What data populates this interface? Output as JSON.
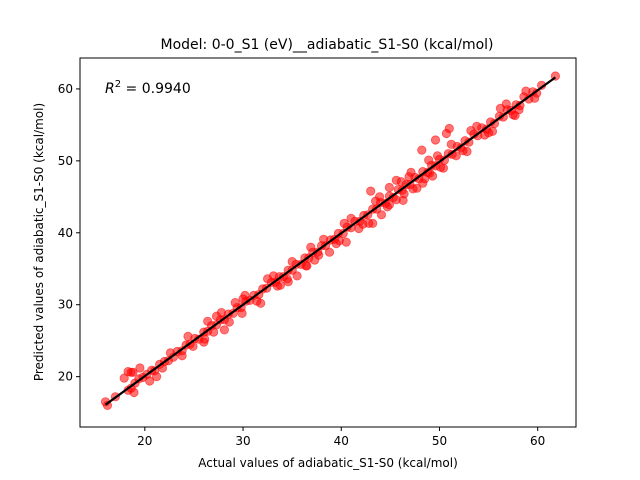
{
  "chart_data": {
    "type": "scatter",
    "title": "Model: 0-0_S1 (eV)__adiabatic_S1-S0 (kcal/mol)",
    "xlabel": "Actual values of adiabatic_S1-S0 (kcal/mol)",
    "ylabel": "Predicted values of adiabatic_S1-S0 (kcal/mol)",
    "annotation": {
      "r2_symbol": "R",
      "r2_exp": "2",
      "r2_text": " = 0.9940"
    },
    "xlim": [
      13.4,
      63.9
    ],
    "ylim": [
      13.0,
      64.3
    ],
    "xticks": [
      20,
      30,
      40,
      50,
      60
    ],
    "yticks": [
      20,
      30,
      40,
      50,
      60
    ],
    "grid": false,
    "legend": "none",
    "point_color": "#ff0000",
    "point_alpha": 0.55,
    "fit_line_color": "#000000",
    "fit_line": [
      [
        16.0,
        16.1
      ],
      [
        61.8,
        61.6
      ]
    ],
    "x": [
      16.0,
      16.2,
      17.0,
      17.9,
      18.3,
      18.6,
      18.8,
      19.0,
      19.4,
      19.8,
      20.2,
      20.7,
      21.0,
      21.5,
      22.0,
      22.4,
      22.9,
      23.3,
      23.8,
      24.2,
      24.6,
      25.1,
      25.5,
      26.0,
      26.4,
      26.8,
      27.3,
      27.7,
      28.1,
      28.5,
      29.0,
      29.4,
      29.8,
      30.3,
      30.7,
      31.1,
      31.6,
      32.0,
      32.4,
      32.9,
      33.3,
      33.7,
      34.1,
      34.6,
      35.0,
      35.4,
      35.9,
      36.3,
      36.7,
      37.1,
      37.6,
      38.0,
      38.4,
      38.9,
      39.3,
      39.7,
      40.2,
      40.6,
      41.0,
      41.4,
      41.9,
      42.3,
      42.7,
      43.2,
      43.6,
      44.0,
      44.5,
      44.9,
      45.3,
      45.8,
      46.2,
      46.6,
      47.0,
      47.5,
      47.9,
      48.3,
      48.8,
      49.2,
      49.6,
      50.0,
      50.5,
      50.9,
      51.3,
      51.8,
      52.2,
      52.6,
      53.0,
      53.5,
      53.9,
      54.3,
      54.8,
      55.2,
      55.6,
      56.1,
      56.5,
      56.9,
      57.3,
      57.8,
      58.2,
      58.6,
      59.1,
      59.5,
      59.9,
      60.4,
      61.8,
      18.3,
      22.6,
      23.8,
      27.8,
      29.9,
      32.5,
      33.8,
      35.0,
      36.4,
      38.2,
      39.5,
      41.0,
      42.2,
      43.5,
      44.9,
      46.1,
      47.3,
      48.9,
      50.1,
      51.2,
      52.4,
      53.8,
      55.0,
      56.2,
      57.5,
      58.8,
      20.5,
      24.4,
      26.1,
      27.3,
      28.6,
      30.2,
      31.4,
      33.1,
      34.5,
      36.9,
      37.3,
      40.3,
      41.8,
      43.9,
      45.6,
      46.9,
      48.5,
      49.8,
      51.7,
      53.2,
      54.6,
      56.8,
      58.1,
      43.0,
      44.9,
      45.6,
      46.4,
      47.1,
      48.2,
      49.6,
      50.7,
      51.0,
      46.3,
      43.2,
      40.5,
      36.5,
      34.6,
      29.2,
      26.4,
      19.5,
      18.6,
      18.9,
      21.2,
      26.0,
      28.1,
      31.8,
      35.5,
      38.8,
      42.8,
      44.1,
      47.7,
      49.3,
      50.4,
      52.8,
      55.4,
      57.7,
      59.7,
      48.3,
      49.0,
      39.8,
      30.0,
      27.0,
      37.7,
      33.5,
      44.7,
      21.8,
      24.9
    ],
    "y": [
      16.5,
      16.0,
      17.2,
      19.8,
      20.7,
      18.4,
      20.6,
      19.1,
      19.7,
      19.9,
      20.3,
      20.9,
      20.8,
      21.7,
      22.1,
      22.2,
      22.7,
      23.5,
      23.6,
      24.4,
      24.5,
      25.3,
      25.2,
      26.2,
      26.3,
      27.1,
      27.2,
      27.9,
      27.9,
      28.7,
      28.8,
      29.6,
      29.6,
      30.5,
      30.6,
      31.3,
      31.4,
      32.2,
      32.3,
      33.1,
      33.1,
      33.9,
      33.9,
      34.8,
      34.8,
      35.6,
      35.6,
      36.5,
      36.5,
      37.3,
      37.3,
      38.2,
      38.2,
      39.0,
      39.1,
      39.9,
      39.9,
      40.8,
      40.7,
      41.6,
      41.6,
      42.4,
      42.5,
      43.3,
      43.3,
      44.2,
      44.1,
      45.1,
      44.9,
      46.0,
      45.9,
      46.7,
      46.7,
      47.7,
      47.5,
      48.5,
      48.4,
      49.4,
      49.3,
      50.2,
      50.1,
      51.0,
      50.9,
      52.0,
      51.8,
      52.8,
      52.6,
      53.7,
      53.5,
      54.6,
      54.4,
      55.4,
      55.2,
      56.2,
      56.1,
      57.1,
      57.0,
      57.8,
      57.7,
      58.9,
      58.6,
      59.6,
      59.4,
      60.5,
      61.8,
      18.1,
      23.3,
      22.9,
      28.9,
      28.8,
      33.6,
      32.7,
      36.0,
      35.4,
      39.1,
      38.5,
      42.0,
      41.2,
      44.4,
      43.9,
      47.1,
      46.1,
      50.1,
      49.1,
      52.3,
      51.4,
      54.8,
      53.9,
      57.3,
      56.4,
      59.7,
      19.4,
      25.6,
      25.2,
      28.4,
      27.6,
      31.3,
      30.5,
      34.0,
      33.6,
      38.0,
      36.2,
      41.3,
      40.6,
      45.0,
      44.6,
      47.8,
      47.5,
      50.7,
      50.7,
      54.2,
      53.6,
      57.9,
      57.1,
      45.8,
      46.3,
      47.3,
      45.4,
      48.4,
      51.5,
      52.9,
      53.8,
      54.5,
      44.5,
      41.3,
      38.7,
      35.4,
      33.2,
      30.3,
      27.7,
      21.2,
      20.6,
      17.8,
      20.0,
      24.8,
      26.5,
      30.2,
      34.0,
      37.3,
      41.3,
      42.5,
      46.2,
      47.9,
      49.0,
      51.3,
      54.1,
      56.3,
      58.7,
      46.9,
      48.3,
      38.9,
      30.8,
      26.2,
      36.9,
      32.6,
      43.6,
      21.2,
      24.2
    ]
  }
}
